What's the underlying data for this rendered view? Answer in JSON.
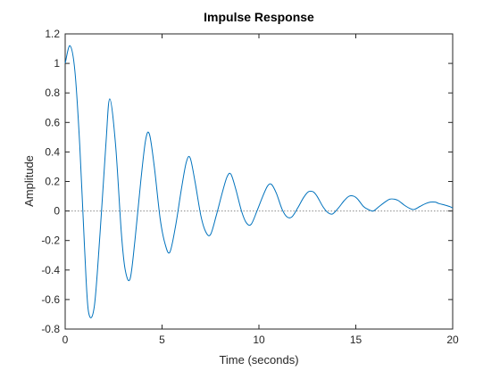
{
  "chart_data": {
    "type": "line",
    "title": "Impulse Response",
    "xlabel": "Time (seconds)",
    "ylabel": "Amplitude",
    "xlim": [
      0,
      20
    ],
    "ylim": [
      -0.8,
      1.2
    ],
    "xticks": [
      0,
      5,
      10,
      15,
      20
    ],
    "xtick_labels": [
      "0",
      "5",
      "10",
      "15",
      "20"
    ],
    "yticks": [
      -0.8,
      -0.6,
      -0.4,
      -0.2,
      0,
      0.2,
      0.4,
      0.6,
      0.8,
      1,
      1.2
    ],
    "ytick_labels": [
      "-0.8",
      "-0.6",
      "-0.4",
      "-0.2",
      "0",
      "0.2",
      "0.4",
      "0.6",
      "0.8",
      "1",
      "1.2"
    ],
    "grid": false,
    "zero_reference_line": true,
    "series": [
      {
        "color": "#0072bd",
        "x": [
          0,
          0.25,
          0.5,
          0.75,
          1.0,
          1.2,
          1.5,
          1.8,
          2.1,
          2.3,
          2.6,
          2.9,
          3.1,
          3.35,
          3.6,
          3.9,
          4.15,
          4.35,
          4.6,
          4.9,
          5.15,
          5.4,
          5.7,
          6.0,
          6.25,
          6.45,
          6.7,
          7.0,
          7.25,
          7.5,
          7.8,
          8.1,
          8.35,
          8.55,
          8.8,
          9.1,
          9.35,
          9.6,
          9.9,
          10.2,
          10.45,
          10.65,
          10.9,
          11.2,
          11.45,
          11.7,
          12.0,
          12.3,
          12.55,
          12.8,
          13.0,
          13.3,
          13.55,
          13.8,
          14.1,
          14.4,
          14.65,
          14.9,
          15.1,
          15.4,
          15.65,
          15.9,
          16.2,
          16.5,
          16.75,
          17.0,
          17.2,
          17.5,
          17.75,
          18.0,
          18.3,
          18.6,
          18.85,
          19.1,
          19.3,
          19.6,
          19.85,
          20.0
        ],
        "y": [
          1.0,
          1.12,
          0.95,
          0.45,
          -0.25,
          -0.68,
          -0.65,
          -0.15,
          0.45,
          0.76,
          0.45,
          -0.15,
          -0.4,
          -0.46,
          -0.2,
          0.2,
          0.48,
          0.52,
          0.3,
          -0.05,
          -0.22,
          -0.28,
          -0.1,
          0.15,
          0.33,
          0.36,
          0.2,
          -0.03,
          -0.14,
          -0.16,
          -0.03,
          0.12,
          0.23,
          0.25,
          0.15,
          0.0,
          -0.08,
          -0.09,
          0.0,
          0.1,
          0.17,
          0.18,
          0.12,
          0.01,
          -0.04,
          -0.04,
          0.02,
          0.09,
          0.13,
          0.13,
          0.1,
          0.03,
          -0.01,
          -0.02,
          0.02,
          0.07,
          0.1,
          0.1,
          0.08,
          0.03,
          0.01,
          0.0,
          0.03,
          0.06,
          0.08,
          0.08,
          0.07,
          0.04,
          0.02,
          0.01,
          0.03,
          0.05,
          0.06,
          0.06,
          0.05,
          0.04,
          0.03,
          0.02
        ]
      }
    ]
  }
}
